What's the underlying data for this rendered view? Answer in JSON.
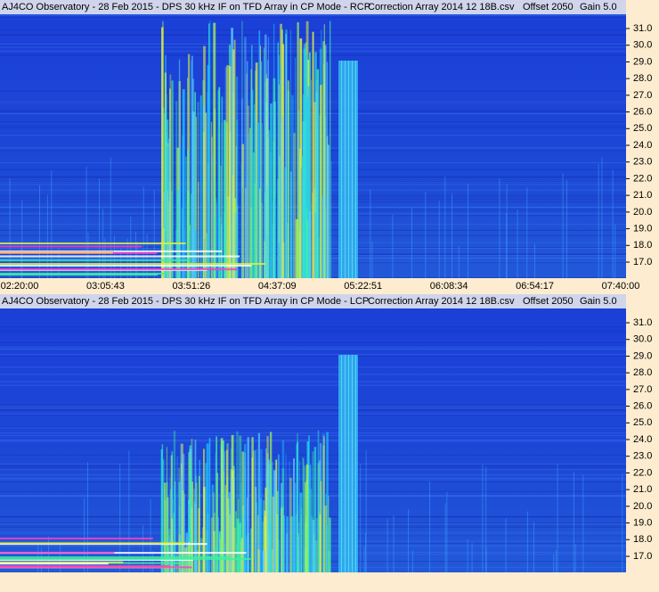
{
  "panels": [
    {
      "title": "AJ4CO Observatory - 28 Feb 2015 - DPS 30 kHz IF on TFD Array in CP Mode - RCP",
      "correction": "Correction Array 2014 12 18B.csv",
      "offset": "Offset 2050",
      "gain": "Gain 5.0",
      "y_labels": [
        "31.0",
        "30.0",
        "29.0",
        "28.0",
        "27.0",
        "26.0",
        "25.0",
        "24.0",
        "23.0",
        "22.0",
        "21.0",
        "20.0",
        "19.0",
        "18.0",
        "17.0"
      ],
      "x_labels": [
        "02:20:00",
        "03:05:43",
        "03:51:26",
        "04:37:09",
        "05:22:51",
        "06:08:34",
        "06:54:17",
        "07:40:00"
      ]
    },
    {
      "title": "AJ4CO Observatory - 28 Feb 2015 - DPS 30 kHz IF on TFD Array in CP Mode - LCP",
      "correction": "Correction Array 2014 12 18B.csv",
      "offset": "Offset 2050",
      "gain": "Gain 5.0",
      "y_labels": [
        "31.0",
        "30.0",
        "29.0",
        "28.0",
        "27.0",
        "26.0",
        "25.0",
        "24.0",
        "23.0",
        "22.0",
        "21.0",
        "20.0",
        "19.0",
        "18.0",
        "17.0"
      ],
      "x_labels": []
    }
  ]
}
